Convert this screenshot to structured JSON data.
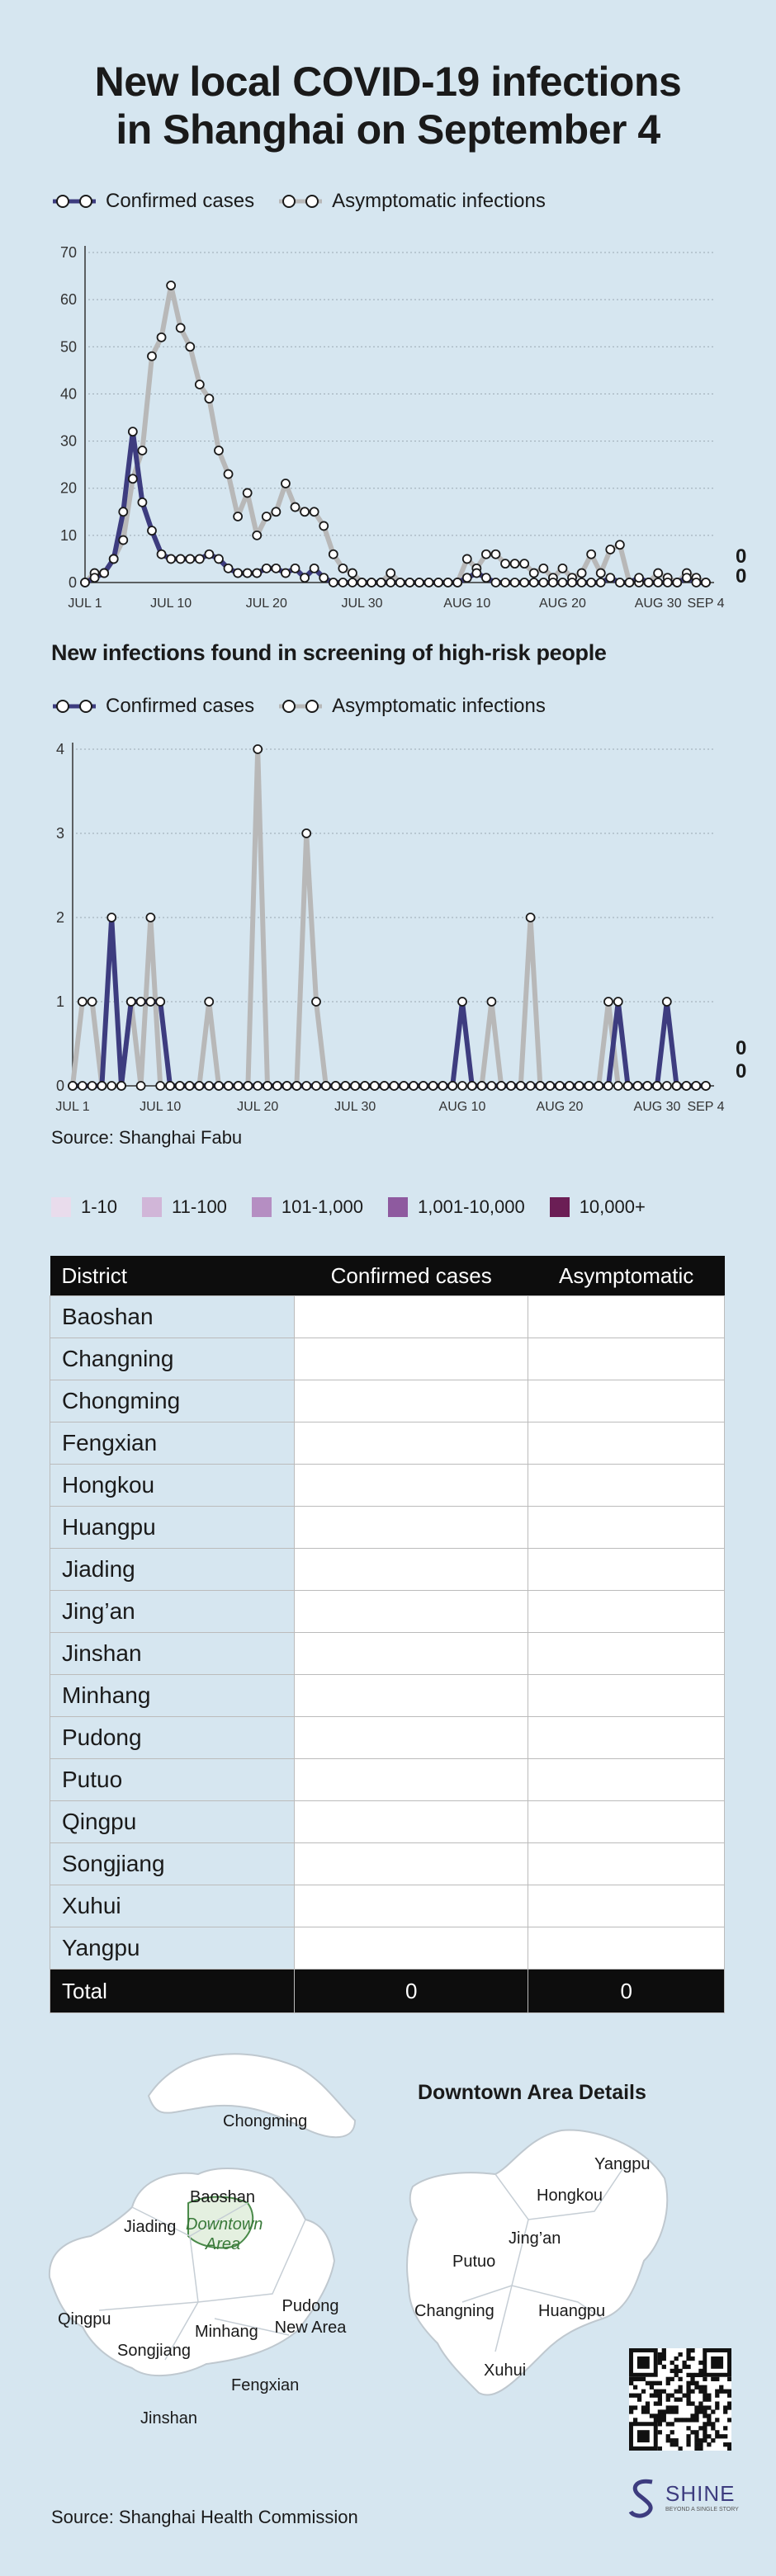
{
  "header": {
    "title_line1": "New local COVID-19 infections",
    "title_line2": "in Shanghai on September 4"
  },
  "legend": {
    "confirmed": "Confirmed cases",
    "asymptomatic": "Asymptomatic infections"
  },
  "colors": {
    "confirmed": "#3d3c7f",
    "asymptomatic": "#b8b8b8",
    "background": "#d6e6f0"
  },
  "chart_data": [
    {
      "type": "line",
      "title": "",
      "ylim": [
        0,
        70
      ],
      "yticks": [
        "0",
        "10",
        "20",
        "30",
        "40",
        "50",
        "60",
        "70"
      ],
      "x_tick_labels": [
        "JUL 1",
        "JUL 10",
        "JUL 20",
        "JUL 30",
        "AUG 10",
        "AUG 20",
        "AUG 30",
        "SEP 4"
      ],
      "x_tick_days": [
        1,
        10,
        20,
        30,
        41,
        51,
        61,
        66
      ],
      "x_days": [
        1,
        2,
        3,
        4,
        5,
        6,
        7,
        8,
        9,
        10,
        11,
        12,
        13,
        14,
        15,
        16,
        17,
        18,
        19,
        20,
        21,
        22,
        23,
        24,
        25,
        26,
        27,
        28,
        29,
        30,
        31,
        32,
        33,
        34,
        35,
        36,
        37,
        38,
        39,
        40,
        41,
        42,
        43,
        44,
        45,
        46,
        47,
        48,
        49,
        50,
        51,
        52,
        53,
        54,
        55,
        56,
        57,
        58,
        59,
        60,
        61,
        62,
        63,
        64,
        65,
        66
      ],
      "series": [
        {
          "name": "Confirmed cases",
          "values": [
            0,
            1,
            2,
            5,
            15,
            32,
            17,
            11,
            6,
            5,
            5,
            5,
            5,
            6,
            5,
            3,
            2,
            2,
            2,
            3,
            3,
            2,
            3,
            1,
            3,
            1,
            0,
            0,
            0,
            0,
            0,
            0,
            0,
            0,
            0,
            0,
            0,
            0,
            0,
            0,
            1,
            2,
            1,
            0,
            0,
            0,
            0,
            0,
            0,
            0,
            0,
            0,
            0,
            0,
            0,
            1,
            0,
            0,
            1,
            0,
            0,
            0,
            0,
            1,
            0,
            0
          ]
        },
        {
          "name": "Asymptomatic infections",
          "values": [
            0,
            2,
            2,
            5,
            9,
            22,
            28,
            48,
            52,
            63,
            54,
            50,
            42,
            39,
            28,
            23,
            14,
            19,
            10,
            14,
            15,
            21,
            16,
            15,
            15,
            12,
            6,
            3,
            2,
            0,
            0,
            0,
            2,
            0,
            0,
            0,
            0,
            0,
            0,
            0,
            5,
            3,
            6,
            6,
            4,
            4,
            4,
            2,
            3,
            1,
            3,
            1,
            2,
            6,
            2,
            7,
            8,
            0,
            0,
            0,
            2,
            1,
            0,
            2,
            1,
            0
          ]
        }
      ],
      "end_labels": [
        "0",
        "0"
      ]
    },
    {
      "type": "line",
      "title": "New infections found in screening of high-risk people",
      "ylim": [
        0,
        4
      ],
      "yticks": [
        "0",
        "1",
        "2",
        "3",
        "4"
      ],
      "x_tick_labels": [
        "JUL 1",
        "JUL 10",
        "JUL 20",
        "JUL 30",
        "AUG 10",
        "AUG 20",
        "AUG 30",
        "SEP 4"
      ],
      "x_tick_days": [
        1,
        10,
        20,
        30,
        41,
        51,
        61,
        66
      ],
      "x_days": [
        1,
        2,
        3,
        4,
        5,
        6,
        7,
        8,
        9,
        10,
        11,
        12,
        13,
        14,
        15,
        16,
        17,
        18,
        19,
        20,
        21,
        22,
        23,
        24,
        25,
        26,
        27,
        28,
        29,
        30,
        31,
        32,
        33,
        34,
        35,
        36,
        37,
        38,
        39,
        40,
        41,
        42,
        43,
        44,
        45,
        46,
        47,
        48,
        49,
        50,
        51,
        52,
        53,
        54,
        55,
        56,
        57,
        58,
        59,
        60,
        61,
        62,
        63,
        64,
        65,
        66
      ],
      "series": [
        {
          "name": "Confirmed cases",
          "values": [
            0,
            0,
            0,
            0,
            2,
            0,
            1,
            1,
            1,
            1,
            0,
            0,
            0,
            0,
            0,
            0,
            0,
            0,
            0,
            0,
            0,
            0,
            0,
            0,
            0,
            0,
            0,
            0,
            0,
            0,
            0,
            0,
            0,
            0,
            0,
            0,
            0,
            0,
            0,
            0,
            1,
            0,
            0,
            0,
            0,
            0,
            0,
            0,
            0,
            0,
            0,
            0,
            0,
            0,
            0,
            0,
            1,
            0,
            0,
            0,
            0,
            1,
            0,
            0,
            0,
            0
          ]
        },
        {
          "name": "Asymptomatic infections",
          "values": [
            0,
            1,
            1,
            0,
            0,
            0,
            1,
            0,
            2,
            0,
            0,
            0,
            0,
            0,
            1,
            0,
            0,
            0,
            0,
            4,
            0,
            0,
            0,
            0,
            3,
            1,
            0,
            0,
            0,
            0,
            0,
            0,
            0,
            0,
            0,
            0,
            0,
            0,
            0,
            0,
            0,
            0,
            0,
            1,
            0,
            0,
            0,
            2,
            0,
            0,
            0,
            0,
            0,
            0,
            0,
            1,
            0,
            0,
            0,
            0,
            0,
            0,
            0,
            0,
            0,
            0
          ]
        }
      ],
      "end_labels": [
        "0",
        "0"
      ]
    }
  ],
  "source_top": "Source: Shanghai Fabu",
  "scale": [
    {
      "label": "1-10",
      "color": "#e9dcec"
    },
    {
      "label": "11-100",
      "color": "#d1b6d8"
    },
    {
      "label": "101-1,000",
      "color": "#b58ec2"
    },
    {
      "label": "1,001-10,000",
      "color": "#8e5a9f"
    },
    {
      "label": "10,000+",
      "color": "#6b1e55"
    }
  ],
  "table": {
    "headers": [
      "District",
      "Confirmed cases",
      "Asymptomatic"
    ],
    "rows": [
      "Baoshan",
      "Changning",
      "Chongming",
      "Fengxian",
      "Hongkou",
      "Huangpu",
      "Jiading",
      "Jing’an",
      "Jinshan",
      "Minhang",
      "Pudong",
      "Putuo",
      "Qingpu",
      "Songjiang",
      "Xuhui",
      "Yangpu"
    ],
    "total_label": "Total",
    "total_confirmed": "0",
    "total_asymptomatic": "0"
  },
  "map": {
    "downtown_title": "Downtown Area Details",
    "labels": [
      "Chongming",
      "Baoshan",
      "Jiading",
      "Downtown Area",
      "Qingpu",
      "Songjiang",
      "Minhang",
      "Pudong New Area",
      "Fengxian",
      "Jinshan"
    ],
    "downtown_labels": [
      "Yangpu",
      "Hongkou",
      "Jing’an",
      "Putuo",
      "Changning",
      "Huangpu",
      "Xuhui"
    ]
  },
  "brand": {
    "name": "SHINE",
    "tagline": "BEYOND A SINGLE STORY"
  },
  "source_bottom": "Source: Shanghai Health Commission"
}
